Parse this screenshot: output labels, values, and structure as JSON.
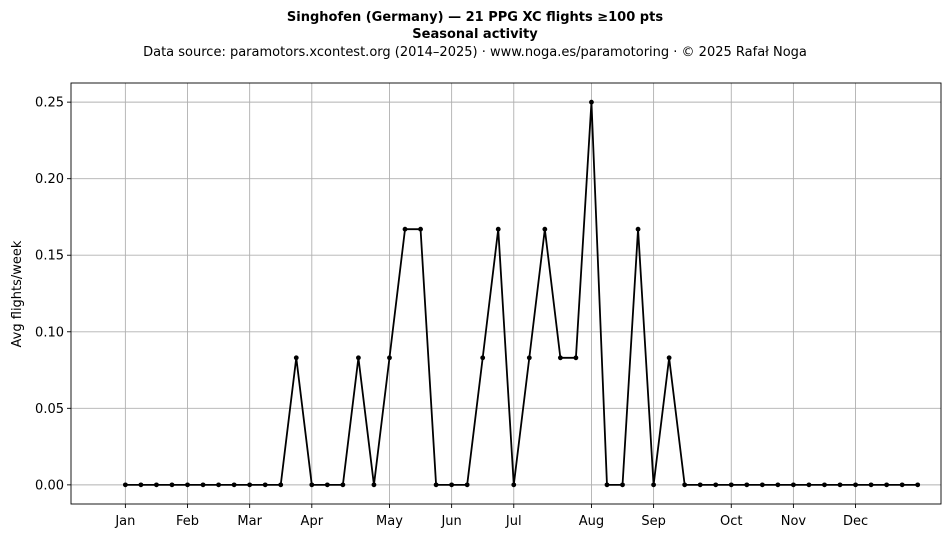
{
  "chart_data": {
    "type": "line",
    "title": "Singhofen (Germany)  —  21 PPG XC flights ≥100 pts",
    "subtitle": "Seasonal activity",
    "source": "Data source: paramotors.xcontest.org (2014–2025)  ·  www.noga.es/paramotoring  ·  © 2025 Rafał Noga",
    "ylabel": "Avg flights/week",
    "xlabel": "",
    "x_unit": "week of year",
    "xlim": [
      -2.5,
      53.5
    ],
    "ylim": [
      -0.0125,
      0.2625
    ],
    "grid": true,
    "month_ticks": [
      {
        "label": "Jan",
        "week": 1
      },
      {
        "label": "Feb",
        "week": 5
      },
      {
        "label": "Mar",
        "week": 9
      },
      {
        "label": "Apr",
        "week": 13
      },
      {
        "label": "May",
        "week": 18
      },
      {
        "label": "Jun",
        "week": 22
      },
      {
        "label": "Jul",
        "week": 26
      },
      {
        "label": "Aug",
        "week": 31
      },
      {
        "label": "Sep",
        "week": 35
      },
      {
        "label": "Oct",
        "week": 40
      },
      {
        "label": "Nov",
        "week": 44
      },
      {
        "label": "Dec",
        "week": 48
      }
    ],
    "y_ticks": [
      {
        "value": 0.0,
        "label": "0.00"
      },
      {
        "value": 0.05,
        "label": "0.05"
      },
      {
        "value": 0.1,
        "label": "0.10"
      },
      {
        "value": 0.15,
        "label": "0.15"
      },
      {
        "value": 0.2,
        "label": "0.20"
      },
      {
        "value": 0.25,
        "label": "0.25"
      }
    ],
    "series": [
      {
        "color": "#000000",
        "x": [
          1,
          2,
          3,
          4,
          5,
          6,
          7,
          8,
          9,
          10,
          11,
          12,
          13,
          14,
          15,
          16,
          17,
          18,
          19,
          20,
          21,
          22,
          23,
          24,
          25,
          26,
          27,
          28,
          29,
          30,
          31,
          32,
          33,
          34,
          35,
          36,
          37,
          38,
          39,
          40,
          41,
          42,
          43,
          44,
          45,
          46,
          47,
          48,
          49,
          50,
          51,
          52
        ],
        "values": [
          0,
          0,
          0,
          0,
          0,
          0,
          0,
          0,
          0,
          0,
          0,
          0.083,
          0,
          0,
          0,
          0.083,
          0,
          0.083,
          0.167,
          0.167,
          0,
          0,
          0,
          0.083,
          0.167,
          0,
          0.083,
          0.167,
          0.083,
          0.083,
          0.25,
          0,
          0,
          0.167,
          0,
          0.083,
          0,
          0,
          0,
          0,
          0,
          0,
          0,
          0,
          0,
          0,
          0,
          0,
          0,
          0,
          0,
          0
        ]
      }
    ]
  }
}
